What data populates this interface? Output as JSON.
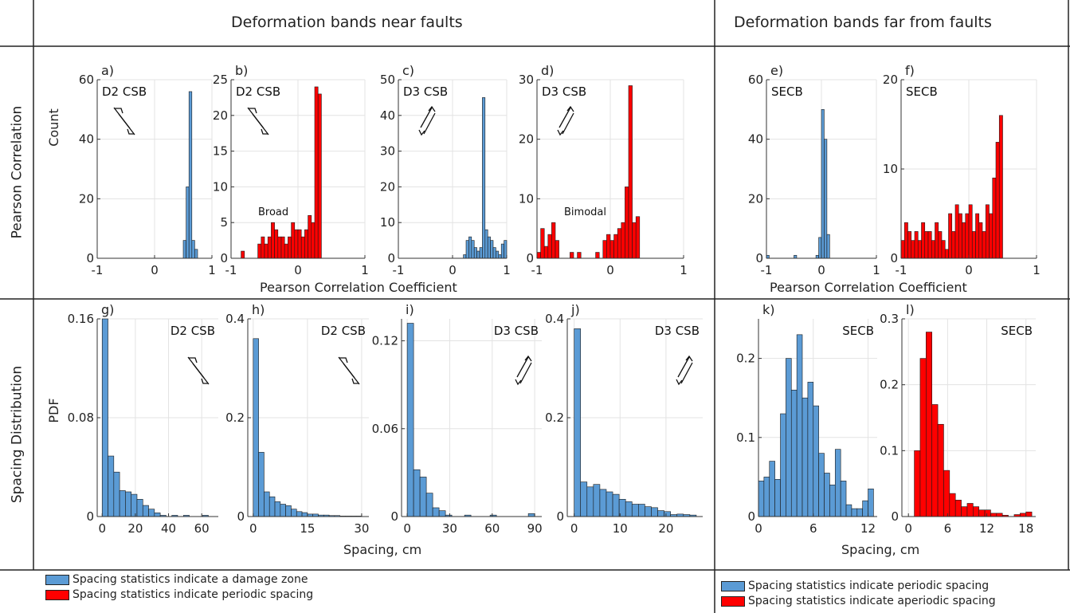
{
  "header": {
    "near_title": "Deformation bands near faults",
    "far_title": "Deformation bands far from faults"
  },
  "rows": {
    "row1_label": "Pearson Correlation",
    "row2_label": "Spacing Distribution"
  },
  "axes_text": {
    "row1_ylabel": "Count",
    "row2_ylabel": "PDF",
    "row1_xlabel_near": "Pearson Correlation Coefficient",
    "row1_xlabel_far": "Pearson Correlation Coefficient",
    "row2_xlabel_near": "Spacing, cm",
    "row2_xlabel_far": "Spacing, cm"
  },
  "legend": {
    "near": [
      {
        "label": "Spacing statistics indicate a damage zone",
        "color": "#5b9bd5"
      },
      {
        "label": "Spacing statistics indicate periodic spacing",
        "color": "#ff0000"
      }
    ],
    "far": [
      {
        "label": "Spacing statistics indicate periodic spacing",
        "color": "#5b9bd5"
      },
      {
        "label": "Spacing statistics indicate aperiodic spacing",
        "color": "#ff0000"
      }
    ]
  },
  "colors": {
    "blue": "#5b9bd5",
    "red": "#ff0000",
    "grid": "#e3e3e3",
    "edge": "#1a1a1a"
  },
  "chart_data": [
    {
      "id": "a",
      "panel_label": "a)",
      "type": "bar",
      "tag": "D2 CSB",
      "arrow": "left-lateral",
      "color": "blue",
      "xlim": [
        -1,
        1
      ],
      "ylim": [
        0,
        60
      ],
      "xticks": [
        "-1",
        "0",
        "1"
      ],
      "xtick_values": [
        -1,
        0,
        1
      ],
      "yticks": [
        "0",
        "20",
        "40",
        "60"
      ],
      "ytick_values": [
        0,
        20,
        40,
        60
      ],
      "bin_width": 0.05,
      "bin_starts": [
        0.5,
        0.55,
        0.6,
        0.65,
        0.7
      ],
      "values": [
        6,
        24,
        56,
        6,
        3
      ]
    },
    {
      "id": "b",
      "panel_label": "b)",
      "type": "bar",
      "tag": "D2 CSB",
      "arrow": "left-lateral",
      "annotation": "Broad",
      "color": "red",
      "xlim": [
        -1,
        1
      ],
      "ylim": [
        0,
        25
      ],
      "xticks": [
        "-1",
        "0",
        "1"
      ],
      "xtick_values": [
        -1,
        0,
        1
      ],
      "yticks": [
        "0",
        "5",
        "10",
        "15",
        "20",
        "25"
      ],
      "ytick_values": [
        0,
        5,
        10,
        15,
        20,
        25
      ],
      "bin_width": 0.05,
      "bin_starts": [
        -0.85,
        -0.6,
        -0.55,
        -0.5,
        -0.45,
        -0.4,
        -0.35,
        -0.3,
        -0.25,
        -0.2,
        -0.15,
        -0.1,
        -0.05,
        0,
        0.05,
        0.1,
        0.15,
        0.2,
        0.25,
        0.3
      ],
      "values": [
        1,
        2,
        3,
        2,
        3,
        5,
        4,
        3,
        3,
        2,
        3,
        5,
        4,
        4,
        3,
        4,
        6,
        5,
        24,
        23
      ]
    },
    {
      "id": "c",
      "panel_label": "c)",
      "type": "bar",
      "tag": "D3 CSB",
      "arrow": "right-lateral",
      "color": "blue",
      "xlim": [
        -1,
        1
      ],
      "ylim": [
        0,
        50
      ],
      "xticks": [
        "-1",
        "0",
        "1"
      ],
      "xtick_values": [
        -1,
        0,
        1
      ],
      "yticks": [
        "0",
        "10",
        "20",
        "30",
        "40",
        "50"
      ],
      "ytick_values": [
        0,
        10,
        20,
        30,
        40,
        50
      ],
      "bin_width": 0.05,
      "bin_starts": [
        0.2,
        0.25,
        0.3,
        0.35,
        0.4,
        0.45,
        0.5,
        0.55,
        0.6,
        0.65,
        0.7,
        0.75,
        0.8,
        0.85,
        0.9,
        0.95
      ],
      "values": [
        1,
        5,
        6,
        5,
        3,
        2,
        3,
        45,
        8,
        6,
        5,
        3,
        2,
        1,
        4,
        5
      ]
    },
    {
      "id": "d",
      "panel_label": "d)",
      "type": "bar",
      "tag": "D3 CSB",
      "arrow": "right-lateral",
      "annotation": "Bimodal",
      "color": "red",
      "xlim": [
        -1,
        1
      ],
      "ylim": [
        0,
        30
      ],
      "xticks": [
        "-1",
        "0",
        "1"
      ],
      "xtick_values": [
        -1,
        0,
        1
      ],
      "yticks": [
        "0",
        "10",
        "20",
        "30"
      ],
      "ytick_values": [
        0,
        10,
        20,
        30
      ],
      "bin_width": 0.05,
      "bin_starts": [
        -1,
        -0.95,
        -0.9,
        -0.85,
        -0.8,
        -0.75,
        -0.55,
        -0.45,
        -0.2,
        -0.1,
        -0.05,
        0,
        0.05,
        0.1,
        0.15,
        0.2,
        0.25,
        0.3,
        0.35
      ],
      "values": [
        1,
        5,
        2,
        4,
        6,
        3,
        1,
        1,
        1,
        3,
        4,
        3,
        4,
        5,
        6,
        12,
        29,
        6,
        7
      ]
    },
    {
      "id": "e",
      "panel_label": "e)",
      "type": "bar",
      "tag": "SECB",
      "color": "blue",
      "xlim": [
        -1,
        1
      ],
      "ylim": [
        0,
        60
      ],
      "xticks": [
        "-1",
        "0",
        "1"
      ],
      "xtick_values": [
        -1,
        0,
        1
      ],
      "yticks": [
        "0",
        "20",
        "40",
        "60"
      ],
      "ytick_values": [
        0,
        20,
        40,
        60
      ],
      "bin_width": 0.05,
      "bin_starts": [
        -1,
        -0.5,
        -0.1,
        -0.05,
        0,
        0.05,
        0.1
      ],
      "values": [
        1,
        1,
        1,
        7,
        50,
        40,
        8
      ]
    },
    {
      "id": "f",
      "panel_label": "f)",
      "type": "bar",
      "tag": "SECB",
      "color": "red",
      "xlim": [
        -1,
        1
      ],
      "ylim": [
        0,
        20
      ],
      "xticks": [
        "-1",
        "0",
        "1"
      ],
      "xtick_values": [
        -1,
        0,
        1
      ],
      "yticks": [
        "0",
        "10",
        "20"
      ],
      "ytick_values": [
        0,
        10,
        20
      ],
      "bin_width": 0.05,
      "bin_starts": [
        -1.0,
        -0.95,
        -0.9,
        -0.85,
        -0.8,
        -0.75,
        -0.7,
        -0.65,
        -0.6,
        -0.55,
        -0.5,
        -0.45,
        -0.4,
        -0.35,
        -0.3,
        -0.25,
        -0.2,
        -0.15,
        -0.1,
        -0.05,
        0.0,
        0.05,
        0.1,
        0.15,
        0.2,
        0.25,
        0.3,
        0.35,
        0.4,
        0.45
      ],
      "values": [
        2,
        4,
        3,
        2,
        3,
        2,
        4,
        3,
        3,
        2,
        4,
        3,
        2,
        1,
        5,
        3,
        6,
        5,
        4,
        5,
        6,
        3,
        5,
        4,
        3,
        6,
        5,
        9,
        13,
        16
      ]
    },
    {
      "id": "g",
      "panel_label": "g)",
      "type": "bar",
      "tag": "D2 CSB",
      "arrow": "left-lateral",
      "color": "blue",
      "xlim": [
        -3,
        70
      ],
      "ylim": [
        0,
        0.16
      ],
      "xticks": [
        "0",
        "20",
        "40",
        "60"
      ],
      "xtick_values": [
        0,
        20,
        40,
        60
      ],
      "yticks": [
        "0",
        "0.08",
        "0.16"
      ],
      "ytick_values": [
        0,
        0.08,
        0.16
      ],
      "bin_width": 3.5,
      "bin_starts": [
        0,
        3.5,
        7,
        10.5,
        14,
        17.5,
        21,
        24.5,
        28,
        31.5,
        35,
        42,
        49,
        60.5
      ],
      "values": [
        0.16,
        0.049,
        0.036,
        0.021,
        0.02,
        0.018,
        0.014,
        0.009,
        0.006,
        0.003,
        0.001,
        0.001,
        0.001,
        0.001
      ]
    },
    {
      "id": "h",
      "panel_label": "h)",
      "type": "bar",
      "tag": "D2 CSB",
      "arrow": "left-lateral",
      "color": "blue",
      "xlim": [
        -1.5,
        32
      ],
      "ylim": [
        0,
        0.4
      ],
      "xticks": [
        "0",
        "15",
        "30"
      ],
      "xtick_values": [
        0,
        15,
        30
      ],
      "yticks": [
        "0",
        "0.2",
        "0.4"
      ],
      "ytick_values": [
        0,
        0.2,
        0.4
      ],
      "bin_width": 1.5,
      "bin_starts": [
        0,
        1.5,
        3,
        4.5,
        6,
        7.5,
        9,
        10.5,
        12,
        13.5,
        15,
        16.5,
        18,
        19.5,
        21,
        22.5,
        24,
        25.5,
        27,
        28.5
      ],
      "values": [
        0.36,
        0.13,
        0.05,
        0.04,
        0.03,
        0.025,
        0.022,
        0.015,
        0.01,
        0.008,
        0.005,
        0.005,
        0.003,
        0.003,
        0.002,
        0.002,
        0.001,
        0.001,
        0.001,
        0.001
      ]
    },
    {
      "id": "i",
      "panel_label": "i)",
      "type": "bar",
      "tag": "D3 CSB",
      "arrow": "right-lateral",
      "color": "blue",
      "xlim": [
        -4,
        95
      ],
      "ylim": [
        0,
        0.135
      ],
      "xticks": [
        "0",
        "30",
        "60",
        "90"
      ],
      "xtick_values": [
        0,
        30,
        60,
        90
      ],
      "yticks": [
        "0",
        "0.06",
        "0.12"
      ],
      "ytick_values": [
        0,
        0.06,
        0.12
      ],
      "bin_width": 4.5,
      "bin_starts": [
        0,
        4.5,
        9,
        13.5,
        18,
        22.5,
        27,
        40.5,
        58.5,
        85.5
      ],
      "values": [
        0.132,
        0.032,
        0.027,
        0.016,
        0.006,
        0.004,
        0.001,
        0.001,
        0.001,
        0.002
      ]
    },
    {
      "id": "j",
      "panel_label": "j)",
      "type": "bar",
      "tag": "D3 CSB",
      "arrow": "right-lateral",
      "color": "blue",
      "xlim": [
        -1.5,
        28
      ],
      "ylim": [
        0,
        0.4
      ],
      "xticks": [
        "0",
        "10",
        "20"
      ],
      "xtick_values": [
        0,
        10,
        20
      ],
      "yticks": [
        "0",
        "0.2",
        "0.4"
      ],
      "ytick_values": [
        0,
        0.2,
        0.4
      ],
      "bin_width": 1.4,
      "bin_starts": [
        0,
        1.4,
        2.8,
        4.2,
        5.6,
        7,
        8.4,
        9.8,
        11.2,
        12.6,
        14,
        15.4,
        16.8,
        18.2,
        19.6,
        21,
        22.4,
        23.8,
        25.2
      ],
      "values": [
        0.38,
        0.07,
        0.06,
        0.065,
        0.055,
        0.05,
        0.045,
        0.035,
        0.03,
        0.025,
        0.025,
        0.02,
        0.018,
        0.012,
        0.01,
        0.004,
        0.005,
        0.004,
        0.003
      ]
    },
    {
      "id": "k",
      "panel_label": "k)",
      "type": "bar",
      "tag": "SECB",
      "color": "blue",
      "xlim": [
        0,
        13
      ],
      "ylim": [
        0,
        0.25
      ],
      "xticks": [
        "0",
        "6",
        "12"
      ],
      "xtick_values": [
        0,
        6,
        12
      ],
      "yticks": [
        "0",
        "0.1",
        "0.2"
      ],
      "ytick_values": [
        0,
        0.1,
        0.2
      ],
      "bin_width": 0.6,
      "bin_starts": [
        0,
        0.6,
        1.2,
        1.8,
        2.4,
        3.0,
        3.6,
        4.2,
        4.8,
        5.4,
        6.0,
        6.6,
        7.2,
        7.8,
        8.4,
        9.0,
        9.6,
        10.2,
        10.8,
        11.4,
        12.0
      ],
      "values": [
        0.045,
        0.05,
        0.07,
        0.047,
        0.13,
        0.2,
        0.16,
        0.23,
        0.15,
        0.17,
        0.14,
        0.08,
        0.055,
        0.04,
        0.085,
        0.045,
        0.015,
        0.01,
        0.01,
        0.02,
        0.035
      ]
    },
    {
      "id": "l",
      "panel_label": "l)",
      "type": "bar",
      "tag": "SECB",
      "color": "red",
      "xlim": [
        -1,
        19.5
      ],
      "ylim": [
        0,
        0.3
      ],
      "xticks": [
        "0",
        "6",
        "12",
        "18"
      ],
      "xtick_values": [
        0,
        6,
        12,
        18
      ],
      "yticks": [
        "0",
        "0.1",
        "0.2",
        "0.3"
      ],
      "ytick_values": [
        0,
        0.1,
        0.2,
        0.3
      ],
      "bin_width": 0.9,
      "bin_starts": [
        0.9,
        1.8,
        2.7,
        3.6,
        4.5,
        5.4,
        6.3,
        7.2,
        8.1,
        9.0,
        9.9,
        10.8,
        11.7,
        12.6,
        13.5,
        14.4,
        16.2,
        17.1,
        18.0
      ],
      "values": [
        0.1,
        0.24,
        0.28,
        0.17,
        0.14,
        0.07,
        0.035,
        0.025,
        0.015,
        0.02,
        0.015,
        0.01,
        0.01,
        0.005,
        0.005,
        0.002,
        0.003,
        0.005,
        0.007
      ]
    }
  ]
}
